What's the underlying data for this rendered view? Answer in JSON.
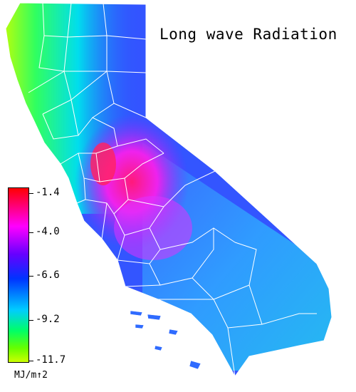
{
  "map": {
    "title": "Long wave Radiation",
    "legend": {
      "ticks": [
        "-1.4",
        "-4.0",
        "-6.6",
        "-9.2",
        "-11.7"
      ],
      "unit": "MJ/m↑2",
      "colors": [
        "#ff0000",
        "#ff00ff",
        "#6600ff",
        "#0033ff",
        "#00ccff",
        "#00ff66",
        "#ccff00"
      ]
    }
  }
}
